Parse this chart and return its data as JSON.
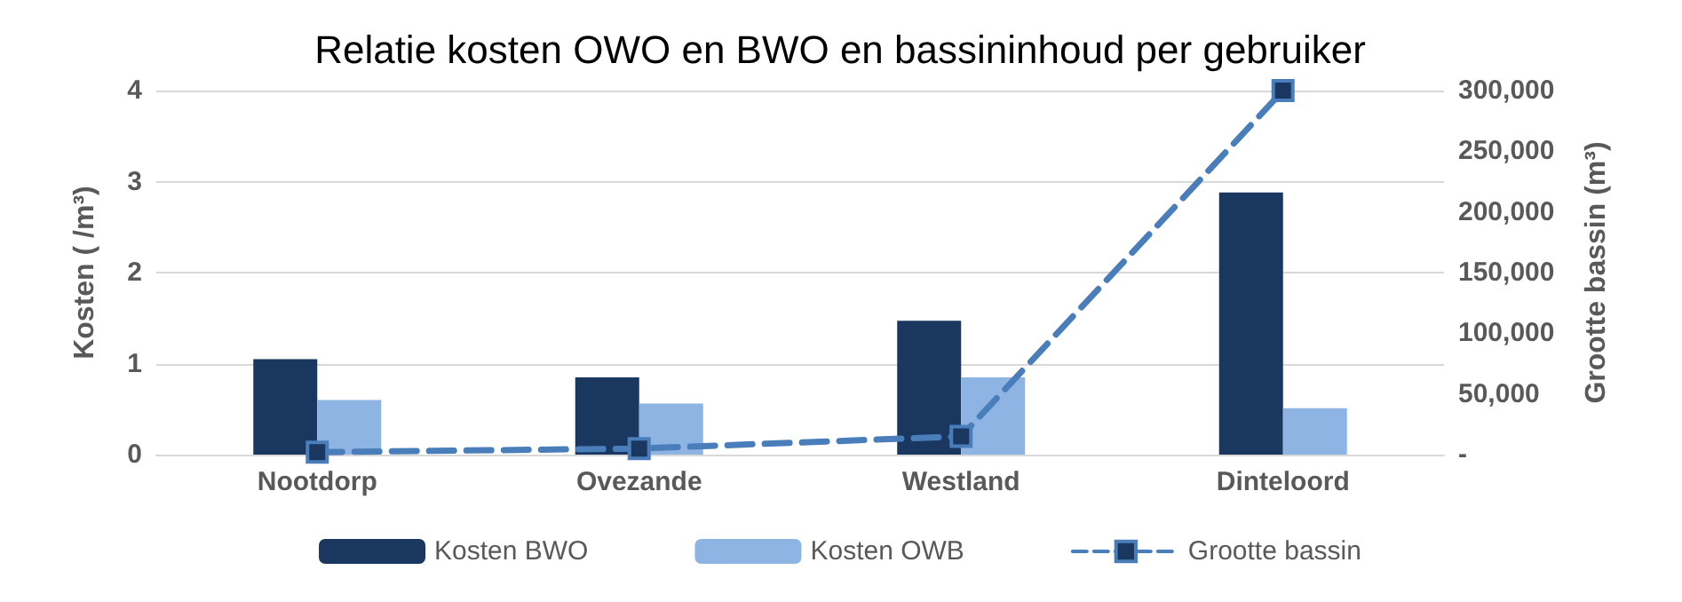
{
  "chart_data": {
    "type": "bar",
    "title": "Relatie kosten OWO en BWO en bassininhoud per gebruiker",
    "ylabel": "Kosten ( /m³)",
    "y2label": "Grootte bassin (m³)",
    "categories": [
      "Nootdorp",
      "Ovezande",
      "Westland",
      "Dinteloord"
    ],
    "series": [
      {
        "name": "Kosten BWO",
        "color": "#1a3760",
        "values": [
          1.05,
          0.85,
          1.47,
          2.88
        ]
      },
      {
        "name": "Kosten OWB",
        "color": "#8eb4e3",
        "values": [
          0.6,
          0.56,
          0.85,
          0.51
        ]
      },
      {
        "name": "Grootte bassin",
        "type": "line",
        "axis": "y2",
        "color": "#4a7ebb",
        "marker": "square",
        "line_style": "dashed",
        "values": [
          2000,
          5000,
          15000,
          300000
        ]
      }
    ],
    "ylim": [
      0,
      4
    ],
    "yticks": [
      0,
      1,
      2,
      3,
      4
    ],
    "y2lim": [
      0,
      300000
    ],
    "y2ticks": [
      {
        "value": 0,
        "label": "-"
      },
      {
        "value": 50000,
        "label": "50,000"
      },
      {
        "value": 100000,
        "label": "100,000"
      },
      {
        "value": 150000,
        "label": "150,000"
      },
      {
        "value": 200000,
        "label": "200,000"
      },
      {
        "value": 250000,
        "label": "250,000"
      },
      {
        "value": 300000,
        "label": "300,000"
      }
    ],
    "grid": "y",
    "legend": "bottom"
  }
}
